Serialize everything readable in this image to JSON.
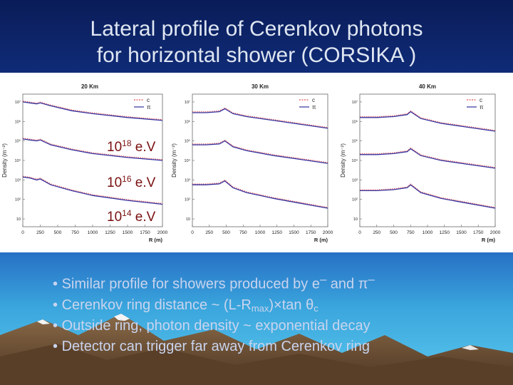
{
  "title": {
    "line1": "Lateral profile of Cerenkov photons",
    "line2": "for horizontal shower  (CORSIKA )"
  },
  "bullets": [
    {
      "marker": "•",
      "before": "Similar profile for showers produced by e",
      "sup1": "–",
      "mid": " and ",
      "sym2": "π",
      "sup2": "–"
    },
    {
      "marker": "•",
      "before": "Cerenkov ring distance ~ (L-R",
      "sub": "max",
      "after": ")×tan θ",
      "sub2": "c"
    },
    {
      "marker": "•",
      "text": "Outside ring, photon density ~ exponential decay"
    },
    {
      "marker": "•",
      "text": "Detector can trigger far away from Cerenkov ring"
    }
  ],
  "colors": {
    "background": "#0b1f5c",
    "electron": "#e05050",
    "pion": "#3030a0",
    "panel": "#ffffff",
    "mountain": "#6b5037",
    "snow": "#f4f4f4"
  },
  "energy_labels": [
    {
      "base": "10",
      "exp": "18",
      "unit": " e.V"
    },
    {
      "base": "10",
      "exp": "16",
      "unit": " e.V"
    },
    {
      "base": "10",
      "exp": "14",
      "unit": " e.V"
    }
  ],
  "chart_data": [
    {
      "type": "line",
      "title": "20 Km",
      "xlabel": "R (m)",
      "ylabel": "Density (m⁻²)",
      "x_ticks": [
        "0",
        "250",
        "500",
        "750",
        "1000",
        "1250",
        "1500",
        "1750",
        "2000"
      ],
      "xlim": [
        0,
        2000
      ],
      "legend": [
        "c",
        "π"
      ],
      "legend_position": "top-right",
      "ring_r": 250,
      "x": [
        0,
        100,
        200,
        250,
        400,
        700,
        1000,
        1500,
        2000
      ],
      "series": [
        {
          "name": "1e18 eV",
          "values": [
            7.0,
            6.95,
            6.9,
            6.95,
            6.8,
            6.55,
            6.4,
            6.2,
            6.05
          ]
        },
        {
          "name": "1e16 eV",
          "values": [
            5.1,
            5.05,
            5.0,
            5.05,
            4.8,
            4.55,
            4.35,
            4.15,
            4.0
          ]
        },
        {
          "name": "1e14 eV",
          "values": [
            3.15,
            3.1,
            3.0,
            3.05,
            2.75,
            2.45,
            2.2,
            1.95,
            1.75
          ]
        }
      ]
    },
    {
      "type": "line",
      "title": "30 Km",
      "xlabel": "R (m)",
      "ylabel": "Density (m⁻²)",
      "x_ticks": [
        "0",
        "250",
        "500",
        "750",
        "1000",
        "1250",
        "1500",
        "1750",
        "2000"
      ],
      "xlim": [
        0,
        2000
      ],
      "legend": [
        "c",
        "π"
      ],
      "legend_position": "top-right",
      "ring_r": 480,
      "x": [
        0,
        200,
        400,
        480,
        600,
        800,
        1200,
        1600,
        2000
      ],
      "series": [
        {
          "name": "1e18 eV",
          "values": [
            6.45,
            6.45,
            6.5,
            6.65,
            6.4,
            6.25,
            6.05,
            5.85,
            5.65
          ]
        },
        {
          "name": "1e16 eV",
          "values": [
            4.8,
            4.8,
            4.85,
            5.0,
            4.7,
            4.5,
            4.25,
            4.05,
            3.85
          ]
        },
        {
          "name": "1e14 eV",
          "values": [
            2.75,
            2.75,
            2.8,
            2.95,
            2.6,
            2.35,
            2.05,
            1.8,
            1.55
          ]
        }
      ]
    },
    {
      "type": "line",
      "title": "40 Km",
      "xlabel": "R (m)",
      "ylabel": "Density (m⁻²)",
      "x_ticks": [
        "0",
        "250",
        "500",
        "750",
        "1000",
        "1250",
        "1500",
        "1750",
        "2000"
      ],
      "xlim": [
        0,
        2000
      ],
      "legend": [
        "c",
        "π"
      ],
      "legend_position": "top-right",
      "ring_r": 750,
      "x": [
        0,
        250,
        500,
        700,
        750,
        900,
        1200,
        1600,
        2000
      ],
      "series": [
        {
          "name": "1e18 eV",
          "values": [
            6.2,
            6.2,
            6.25,
            6.35,
            6.5,
            6.15,
            5.9,
            5.7,
            5.5
          ]
        },
        {
          "name": "1e16 eV",
          "values": [
            4.3,
            4.3,
            4.35,
            4.45,
            4.6,
            4.25,
            4.0,
            3.8,
            3.6
          ]
        },
        {
          "name": "1e14 eV",
          "values": [
            2.45,
            2.45,
            2.5,
            2.6,
            2.75,
            2.35,
            2.05,
            1.8,
            1.55
          ]
        }
      ]
    }
  ],
  "y_tick_labels": [
    "10⁷",
    "10⁶",
    "10⁵",
    "10⁴",
    "10³",
    "10²",
    "10"
  ]
}
